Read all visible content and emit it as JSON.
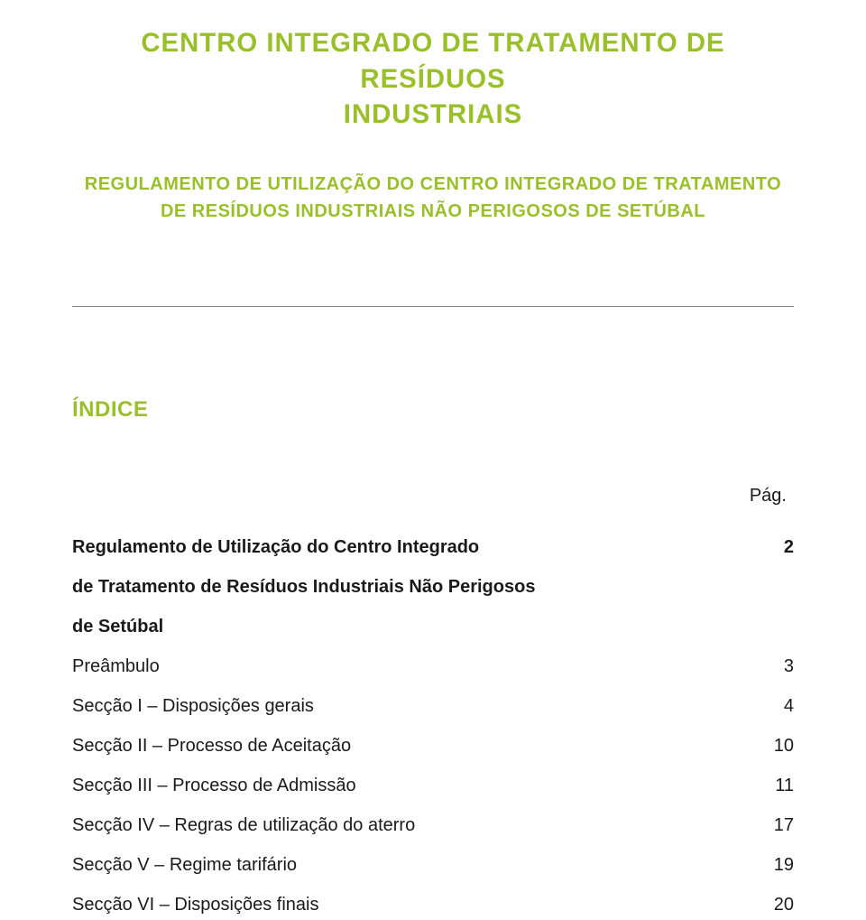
{
  "colors": {
    "accent": "#99bf2a",
    "text": "#1a1a1a",
    "hr": "#888888"
  },
  "fonts": {
    "title_size_pt": 22,
    "subtitle_size_pt": 15,
    "indice_size_pt": 18,
    "body_size_pt": 15,
    "line_height_body": 1.7
  },
  "title": {
    "line1": "CENTRO INTEGRADO DE TRATAMENTO DE RESÍDUOS",
    "line2": "INDUSTRIAIS"
  },
  "subtitle": {
    "line1": "REGULAMENTO DE UTILIZAÇÃO DO CENTRO INTEGRADO DE TRATAMENTO",
    "line2": "DE RESÍDUOS INDUSTRIAIS NÃO PERIGOSOS DE SETÚBAL"
  },
  "indice_label": "ÍNDICE",
  "pag_label": "Pág.",
  "toc": {
    "group_heading": {
      "line1": "Regulamento de Utilização do Centro Integrado",
      "line2": "de Tratamento de Resíduos Industriais Não Perigosos",
      "line3": "de Setúbal",
      "page": "2"
    },
    "items": [
      {
        "label": "Preâmbulo",
        "page": "3"
      },
      {
        "label": "Secção I – Disposições gerais",
        "page": "4"
      },
      {
        "label": "Secção II – Processo de Aceitação",
        "page": "10"
      },
      {
        "label": "Secção III – Processo de Admissão",
        "page": "11"
      },
      {
        "label": "Secção IV – Regras de utilização do aterro",
        "page": "17"
      },
      {
        "label": "Secção V – Regime tarifário",
        "page": "19"
      },
      {
        "label": "Secção VI – Disposições finais",
        "page": "20"
      }
    ]
  }
}
